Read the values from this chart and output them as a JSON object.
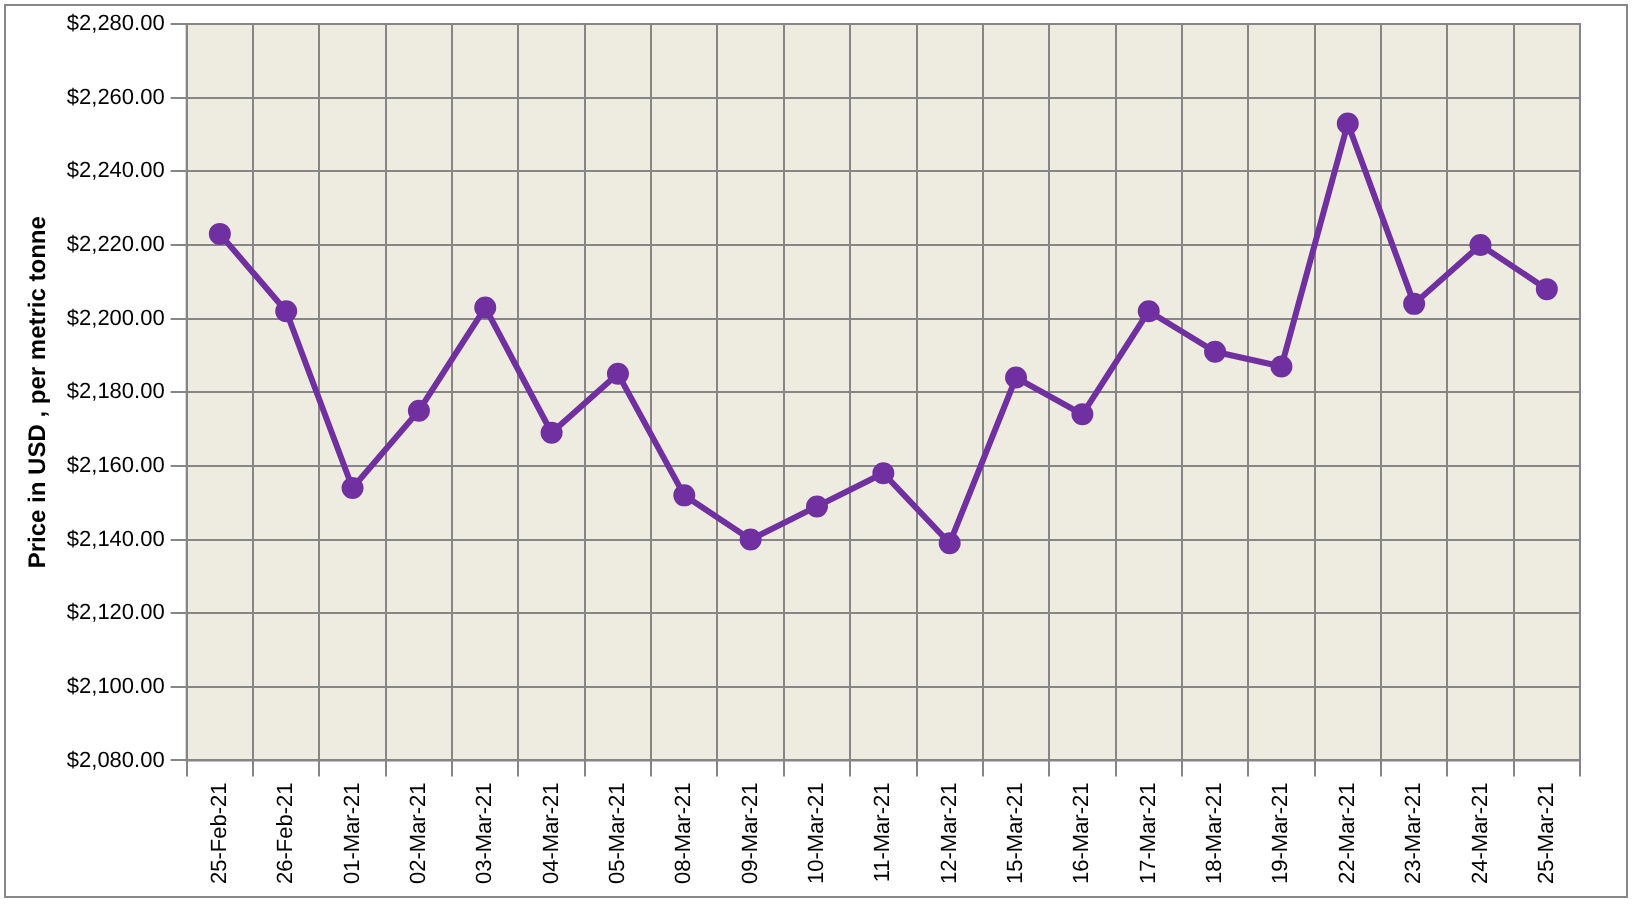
{
  "chart_data": {
    "type": "line",
    "ylabel": "Price in USD , per metric tonne",
    "categories": [
      "25-Feb-21",
      "26-Feb-21",
      "01-Mar-21",
      "02-Mar-21",
      "03-Mar-21",
      "04-Mar-21",
      "05-Mar-21",
      "08-Mar-21",
      "09-Mar-21",
      "10-Mar-21",
      "11-Mar-21",
      "12-Mar-21",
      "15-Mar-21",
      "16-Mar-21",
      "17-Mar-21",
      "18-Mar-21",
      "19-Mar-21",
      "22-Mar-21",
      "23-Mar-21",
      "24-Mar-21",
      "25-Mar-21"
    ],
    "series": [
      {
        "color": "#7030a0",
        "values": [
          2223,
          2202,
          2154,
          2175,
          2203,
          2169,
          2185,
          2152,
          2140,
          2149,
          2158,
          2139,
          2184,
          2174,
          2202,
          2191,
          2187,
          2253,
          2204,
          2220,
          2208
        ]
      }
    ],
    "ylim": [
      2080,
      2280
    ],
    "yticks": [
      {
        "value": 2080,
        "label": "$2,080.00"
      },
      {
        "value": 2100,
        "label": "$2,100.00"
      },
      {
        "value": 2120,
        "label": "$2,120.00"
      },
      {
        "value": 2140,
        "label": "$2,140.00"
      },
      {
        "value": 2160,
        "label": "$2,160.00"
      },
      {
        "value": 2180,
        "label": "$2,180.00"
      },
      {
        "value": 2200,
        "label": "$2,200.00"
      },
      {
        "value": 2220,
        "label": "$2,220.00"
      },
      {
        "value": 2240,
        "label": "$2,240.00"
      },
      {
        "value": 2260,
        "label": "$2,260.00"
      },
      {
        "value": 2280,
        "label": "$2,280.00"
      }
    ],
    "grid": true,
    "marker": "circle",
    "line_style": "solid",
    "legend": false
  }
}
